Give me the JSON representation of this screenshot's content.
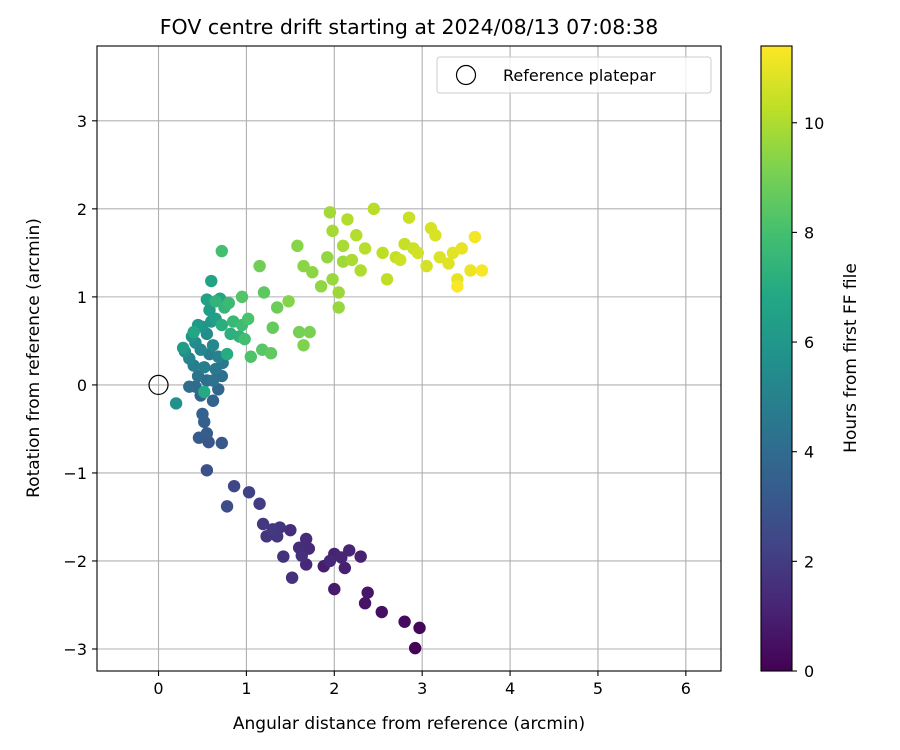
{
  "chart_data": {
    "type": "scatter",
    "title": "FOV centre drift starting at 2024/08/13 07:08:38",
    "xlabel": "Angular distance from reference (arcmin)",
    "ylabel": "Rotation from reference (arcmin)",
    "xlim": [
      -0.7,
      6.4
    ],
    "ylim": [
      -3.25,
      3.85
    ],
    "xticks": [
      0,
      1,
      2,
      3,
      4,
      5,
      6
    ],
    "yticks": [
      -3,
      -2,
      -1,
      0,
      1,
      2,
      3
    ],
    "grid": true,
    "legend": {
      "placement": "upper right",
      "entries": [
        "Reference platepar"
      ]
    },
    "colorbar": {
      "label": "Hours from first FF file",
      "range": [
        0,
        11.4
      ],
      "ticks": [
        0,
        2,
        4,
        6,
        8,
        10
      ],
      "colormap": "viridis"
    },
    "reference_point": {
      "x": 0,
      "y": 0,
      "label": "Reference platepar"
    },
    "series": [
      {
        "marker": "filled-circle",
        "colormap": "viridis",
        "points": [
          [
            2.92,
            -2.99,
            0.1
          ],
          [
            2.97,
            -2.76,
            0.2
          ],
          [
            2.8,
            -2.69,
            0.3
          ],
          [
            2.54,
            -2.58,
            0.45
          ],
          [
            2.35,
            -2.48,
            0.6
          ],
          [
            2.38,
            -2.36,
            0.7
          ],
          [
            2.0,
            -2.32,
            0.8
          ],
          [
            1.88,
            -2.06,
            0.9
          ],
          [
            2.12,
            -2.08,
            1.0
          ],
          [
            2.3,
            -1.95,
            1.05
          ],
          [
            2.0,
            -1.92,
            1.1
          ],
          [
            2.17,
            -1.88,
            1.15
          ],
          [
            2.08,
            -1.96,
            1.2
          ],
          [
            1.95,
            -2.0,
            1.25
          ],
          [
            1.68,
            -2.04,
            1.3
          ],
          [
            1.71,
            -1.86,
            1.35
          ],
          [
            1.68,
            -1.75,
            1.4
          ],
          [
            1.6,
            -1.85,
            1.45
          ],
          [
            1.5,
            -1.65,
            1.5
          ],
          [
            1.63,
            -1.94,
            1.55
          ],
          [
            1.52,
            -2.19,
            1.6
          ],
          [
            1.42,
            -1.95,
            1.65
          ],
          [
            1.23,
            -1.72,
            1.7
          ],
          [
            1.38,
            -1.62,
            1.75
          ],
          [
            1.35,
            -1.72,
            1.8
          ],
          [
            1.19,
            -1.58,
            1.85
          ],
          [
            1.3,
            -1.64,
            1.9
          ],
          [
            1.15,
            -1.35,
            2.0
          ],
          [
            1.03,
            -1.22,
            2.2
          ],
          [
            0.86,
            -1.15,
            2.4
          ],
          [
            0.78,
            -1.38,
            2.6
          ],
          [
            0.55,
            -0.97,
            2.8
          ],
          [
            0.57,
            -0.65,
            3.0
          ],
          [
            0.72,
            -0.66,
            3.1
          ],
          [
            0.46,
            -0.6,
            3.2
          ],
          [
            0.55,
            -0.55,
            3.3
          ],
          [
            0.52,
            -0.42,
            3.4
          ],
          [
            0.5,
            -0.33,
            3.5
          ],
          [
            0.62,
            -0.18,
            3.6
          ],
          [
            0.48,
            -0.12,
            3.7
          ],
          [
            0.68,
            -0.05,
            3.8
          ],
          [
            0.42,
            -0.02,
            3.9
          ],
          [
            0.35,
            -0.02,
            4.0
          ],
          [
            0.55,
            0.05,
            4.1
          ],
          [
            0.72,
            0.1,
            4.2
          ],
          [
            0.62,
            0.05,
            4.3
          ],
          [
            0.45,
            0.1,
            4.4
          ],
          [
            0.65,
            0.18,
            4.5
          ],
          [
            0.73,
            0.25,
            4.6
          ],
          [
            0.58,
            0.35,
            4.7
          ],
          [
            0.4,
            0.22,
            4.8
          ],
          [
            0.52,
            0.2,
            4.9
          ],
          [
            0.68,
            0.32,
            5.0
          ],
          [
            0.35,
            0.3,
            5.1
          ],
          [
            0.48,
            0.4,
            5.2
          ],
          [
            0.62,
            0.45,
            5.3
          ],
          [
            0.42,
            0.48,
            5.4
          ],
          [
            0.55,
            0.58,
            5.5
          ],
          [
            0.3,
            0.38,
            5.6
          ],
          [
            0.2,
            -0.21,
            5.7
          ],
          [
            0.38,
            0.55,
            5.8
          ],
          [
            0.5,
            0.66,
            5.9
          ],
          [
            0.6,
            0.72,
            6.0
          ],
          [
            0.45,
            0.68,
            6.1
          ],
          [
            0.28,
            0.42,
            6.2
          ],
          [
            0.58,
            0.85,
            6.3
          ],
          [
            0.65,
            0.75,
            6.4
          ],
          [
            0.55,
            0.97,
            6.5
          ],
          [
            0.6,
            1.18,
            6.6
          ],
          [
            0.7,
            0.98,
            6.7
          ],
          [
            0.4,
            0.6,
            6.8
          ],
          [
            0.52,
            -0.08,
            6.9
          ],
          [
            0.78,
            0.35,
            7.0
          ],
          [
            0.72,
            0.68,
            7.1
          ],
          [
            0.82,
            0.58,
            7.2
          ],
          [
            0.92,
            0.55,
            7.3
          ],
          [
            0.65,
            0.95,
            7.4
          ],
          [
            0.75,
            0.88,
            7.5
          ],
          [
            0.85,
            0.72,
            7.6
          ],
          [
            0.8,
            0.93,
            7.7
          ],
          [
            0.95,
            0.68,
            7.8
          ],
          [
            0.98,
            0.52,
            7.9
          ],
          [
            0.72,
            1.52,
            8.0
          ],
          [
            1.02,
            0.75,
            8.1
          ],
          [
            1.05,
            0.32,
            8.2
          ],
          [
            0.95,
            1.0,
            8.3
          ],
          [
            1.18,
            0.4,
            8.4
          ],
          [
            1.2,
            1.05,
            8.5
          ],
          [
            1.28,
            0.36,
            8.6
          ],
          [
            1.3,
            0.65,
            8.7
          ],
          [
            1.35,
            0.88,
            8.8
          ],
          [
            1.15,
            1.35,
            8.9
          ],
          [
            1.6,
            0.6,
            9.0
          ],
          [
            1.72,
            0.6,
            9.1
          ],
          [
            1.65,
            0.45,
            9.2
          ],
          [
            1.48,
            0.95,
            9.3
          ],
          [
            1.58,
            1.58,
            9.35
          ],
          [
            1.65,
            1.35,
            9.4
          ],
          [
            1.75,
            1.28,
            9.45
          ],
          [
            1.85,
            1.12,
            9.5
          ],
          [
            1.92,
            1.45,
            9.55
          ],
          [
            2.05,
            0.88,
            9.6
          ],
          [
            1.98,
            1.2,
            9.65
          ],
          [
            2.05,
            1.05,
            9.7
          ],
          [
            2.1,
            1.4,
            9.75
          ],
          [
            1.95,
            1.96,
            9.8
          ],
          [
            1.98,
            1.75,
            9.85
          ],
          [
            2.1,
            1.58,
            9.9
          ],
          [
            2.2,
            1.42,
            9.95
          ],
          [
            2.3,
            1.3,
            10.0
          ],
          [
            2.15,
            1.88,
            10.05
          ],
          [
            2.25,
            1.7,
            10.1
          ],
          [
            2.35,
            1.55,
            10.15
          ],
          [
            2.45,
            2.0,
            10.2
          ],
          [
            2.55,
            1.5,
            10.25
          ],
          [
            2.6,
            1.2,
            10.3
          ],
          [
            2.7,
            1.45,
            10.35
          ],
          [
            2.8,
            1.6,
            10.4
          ],
          [
            2.85,
            1.9,
            10.45
          ],
          [
            2.9,
            1.55,
            10.5
          ],
          [
            2.75,
            1.42,
            10.55
          ],
          [
            2.95,
            1.5,
            10.6
          ],
          [
            3.05,
            1.35,
            10.65
          ],
          [
            3.1,
            1.78,
            10.7
          ],
          [
            3.15,
            1.7,
            10.75
          ],
          [
            3.2,
            1.45,
            10.8
          ],
          [
            3.3,
            1.38,
            10.85
          ],
          [
            3.35,
            1.5,
            10.9
          ],
          [
            3.4,
            1.2,
            10.95
          ],
          [
            3.45,
            1.55,
            11.0
          ],
          [
            3.55,
            1.3,
            11.1
          ],
          [
            3.6,
            1.68,
            11.2
          ],
          [
            3.68,
            1.3,
            11.3
          ],
          [
            3.4,
            1.12,
            11.35
          ]
        ]
      }
    ]
  }
}
